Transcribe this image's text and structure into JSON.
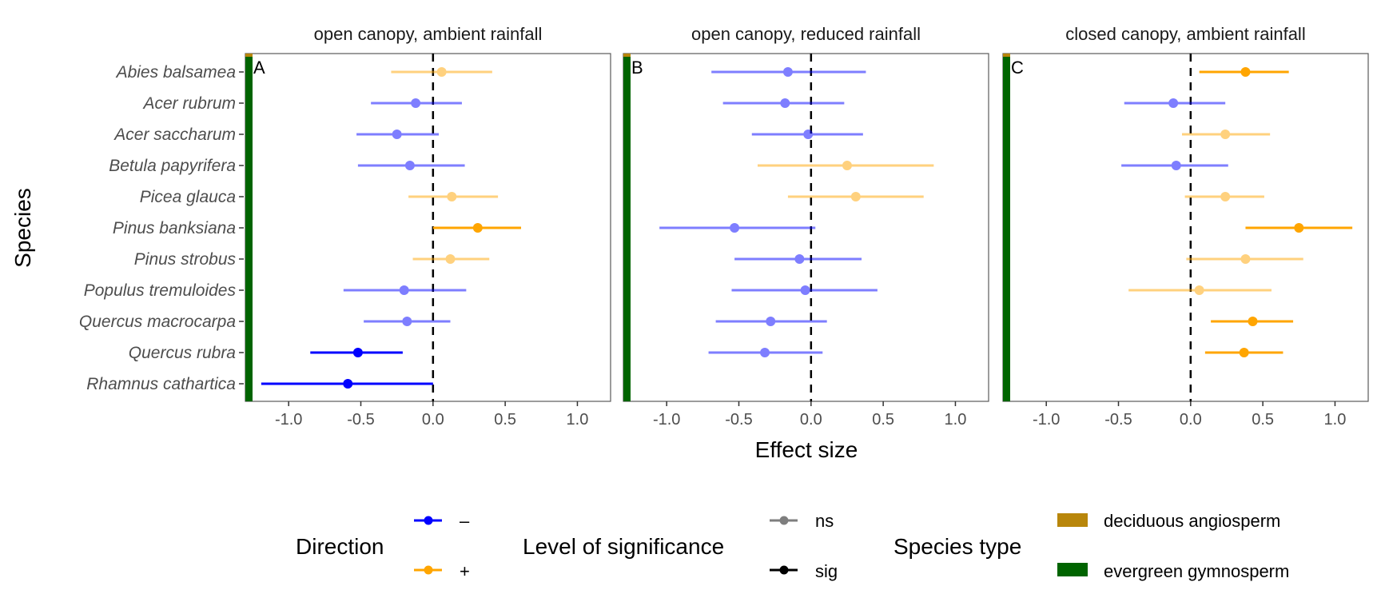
{
  "chart_data": {
    "type": "forest",
    "ylabel": "Species",
    "xlabel": "Effect size",
    "xlim": [
      -1.3,
      1.23
    ],
    "xticks": [
      -1.0,
      -0.5,
      0.0,
      0.5,
      1.0
    ],
    "xtick_labels": [
      "-1.0",
      "-0.5",
      "0.0",
      "0.5",
      "1.0"
    ],
    "reference_line": 0.0,
    "species": [
      "Abies balsamea",
      "Acer rubrum",
      "Acer saccharum",
      "Betula papyrifera",
      "Picea glauca",
      "Pinus banksiana",
      "Pinus strobus",
      "Populus tremuloides",
      "Quercus macrocarpa",
      "Quercus rubra",
      "Rhamnus cathartica"
    ],
    "panels": [
      {
        "tag": "A",
        "title": "open canopy, ambient rainfall",
        "points": [
          {
            "species": "Abies balsamea",
            "est": 0.06,
            "lo": -0.29,
            "hi": 0.41,
            "direction": "+",
            "sig": "ns"
          },
          {
            "species": "Acer rubrum",
            "est": -0.12,
            "lo": -0.43,
            "hi": 0.2,
            "direction": "-",
            "sig": "ns"
          },
          {
            "species": "Acer saccharum",
            "est": -0.25,
            "lo": -0.53,
            "hi": 0.04,
            "direction": "-",
            "sig": "ns"
          },
          {
            "species": "Betula papyrifera",
            "est": -0.16,
            "lo": -0.52,
            "hi": 0.22,
            "direction": "-",
            "sig": "ns"
          },
          {
            "species": "Picea glauca",
            "est": 0.13,
            "lo": -0.17,
            "hi": 0.45,
            "direction": "+",
            "sig": "ns"
          },
          {
            "species": "Pinus banksiana",
            "est": 0.31,
            "lo": 0.0,
            "hi": 0.61,
            "direction": "+",
            "sig": "sig"
          },
          {
            "species": "Pinus strobus",
            "est": 0.12,
            "lo": -0.14,
            "hi": 0.39,
            "direction": "+",
            "sig": "ns"
          },
          {
            "species": "Populus tremuloides",
            "est": -0.2,
            "lo": -0.62,
            "hi": 0.23,
            "direction": "-",
            "sig": "ns"
          },
          {
            "species": "Quercus macrocarpa",
            "est": -0.18,
            "lo": -0.48,
            "hi": 0.12,
            "direction": "-",
            "sig": "ns"
          },
          {
            "species": "Quercus rubra",
            "est": -0.52,
            "lo": -0.85,
            "hi": -0.21,
            "direction": "-",
            "sig": "sig"
          },
          {
            "species": "Rhamnus cathartica",
            "est": -0.59,
            "lo": -1.19,
            "hi": 0.0,
            "direction": "-",
            "sig": "sig"
          }
        ]
      },
      {
        "tag": "B",
        "title": "open canopy, reduced rainfall",
        "points": [
          {
            "species": "Abies balsamea",
            "est": -0.16,
            "lo": -0.69,
            "hi": 0.38,
            "direction": "-",
            "sig": "ns"
          },
          {
            "species": "Acer rubrum",
            "est": -0.18,
            "lo": -0.61,
            "hi": 0.23,
            "direction": "-",
            "sig": "ns"
          },
          {
            "species": "Acer saccharum",
            "est": -0.02,
            "lo": -0.41,
            "hi": 0.36,
            "direction": "-",
            "sig": "ns"
          },
          {
            "species": "Betula papyrifera",
            "est": 0.25,
            "lo": -0.37,
            "hi": 0.85,
            "direction": "+",
            "sig": "ns"
          },
          {
            "species": "Picea glauca",
            "est": 0.31,
            "lo": -0.16,
            "hi": 0.78,
            "direction": "+",
            "sig": "ns"
          },
          {
            "species": "Pinus banksiana",
            "est": -0.53,
            "lo": -1.05,
            "hi": 0.03,
            "direction": "-",
            "sig": "ns"
          },
          {
            "species": "Pinus strobus",
            "est": -0.08,
            "lo": -0.53,
            "hi": 0.35,
            "direction": "-",
            "sig": "ns"
          },
          {
            "species": "Populus tremuloides",
            "est": -0.04,
            "lo": -0.55,
            "hi": 0.46,
            "direction": "-",
            "sig": "ns"
          },
          {
            "species": "Quercus macrocarpa",
            "est": -0.28,
            "lo": -0.66,
            "hi": 0.11,
            "direction": "-",
            "sig": "ns"
          },
          {
            "species": "Quercus rubra",
            "est": -0.32,
            "lo": -0.71,
            "hi": 0.08,
            "direction": "-",
            "sig": "ns"
          }
        ]
      },
      {
        "tag": "C",
        "title": "closed canopy, ambient rainfall",
        "points": [
          {
            "species": "Abies balsamea",
            "est": 0.38,
            "lo": 0.06,
            "hi": 0.68,
            "direction": "+",
            "sig": "sig"
          },
          {
            "species": "Acer rubrum",
            "est": -0.12,
            "lo": -0.46,
            "hi": 0.24,
            "direction": "-",
            "sig": "ns"
          },
          {
            "species": "Acer saccharum",
            "est": 0.24,
            "lo": -0.06,
            "hi": 0.55,
            "direction": "+",
            "sig": "ns"
          },
          {
            "species": "Betula papyrifera",
            "est": -0.1,
            "lo": -0.48,
            "hi": 0.26,
            "direction": "-",
            "sig": "ns"
          },
          {
            "species": "Picea glauca",
            "est": 0.24,
            "lo": -0.04,
            "hi": 0.51,
            "direction": "+",
            "sig": "ns"
          },
          {
            "species": "Pinus banksiana",
            "est": 0.75,
            "lo": 0.38,
            "hi": 1.12,
            "direction": "+",
            "sig": "sig"
          },
          {
            "species": "Pinus strobus",
            "est": 0.38,
            "lo": -0.03,
            "hi": 0.78,
            "direction": "+",
            "sig": "ns"
          },
          {
            "species": "Populus tremuloides",
            "est": 0.06,
            "lo": -0.43,
            "hi": 0.56,
            "direction": "+",
            "sig": "ns"
          },
          {
            "species": "Quercus macrocarpa",
            "est": 0.43,
            "lo": 0.14,
            "hi": 0.71,
            "direction": "+",
            "sig": "sig"
          },
          {
            "species": "Quercus rubra",
            "est": 0.37,
            "lo": 0.1,
            "hi": 0.64,
            "direction": "+",
            "sig": "sig"
          }
        ]
      }
    ],
    "legend": {
      "placement": "bottom",
      "direction": {
        "title": "Direction",
        "items": [
          {
            "label": "–",
            "color": "#0000ff"
          },
          {
            "label": "+",
            "color": "#ffa500"
          }
        ]
      },
      "significance": {
        "title": "Level of significance",
        "items": [
          {
            "label": "ns",
            "alpha": 0.5
          },
          {
            "label": "sig",
            "alpha": 1.0
          }
        ]
      },
      "species_type": {
        "title": "Species type",
        "items": [
          {
            "label": "deciduous angiosperm",
            "color": "#b8860b"
          },
          {
            "label": "evergreen gymnosperm",
            "color": "#006400"
          }
        ]
      }
    },
    "colors": {
      "negative": "#0000ff",
      "positive": "#ffa500",
      "deciduous": "#b8860b",
      "evergreen": "#006400"
    }
  }
}
